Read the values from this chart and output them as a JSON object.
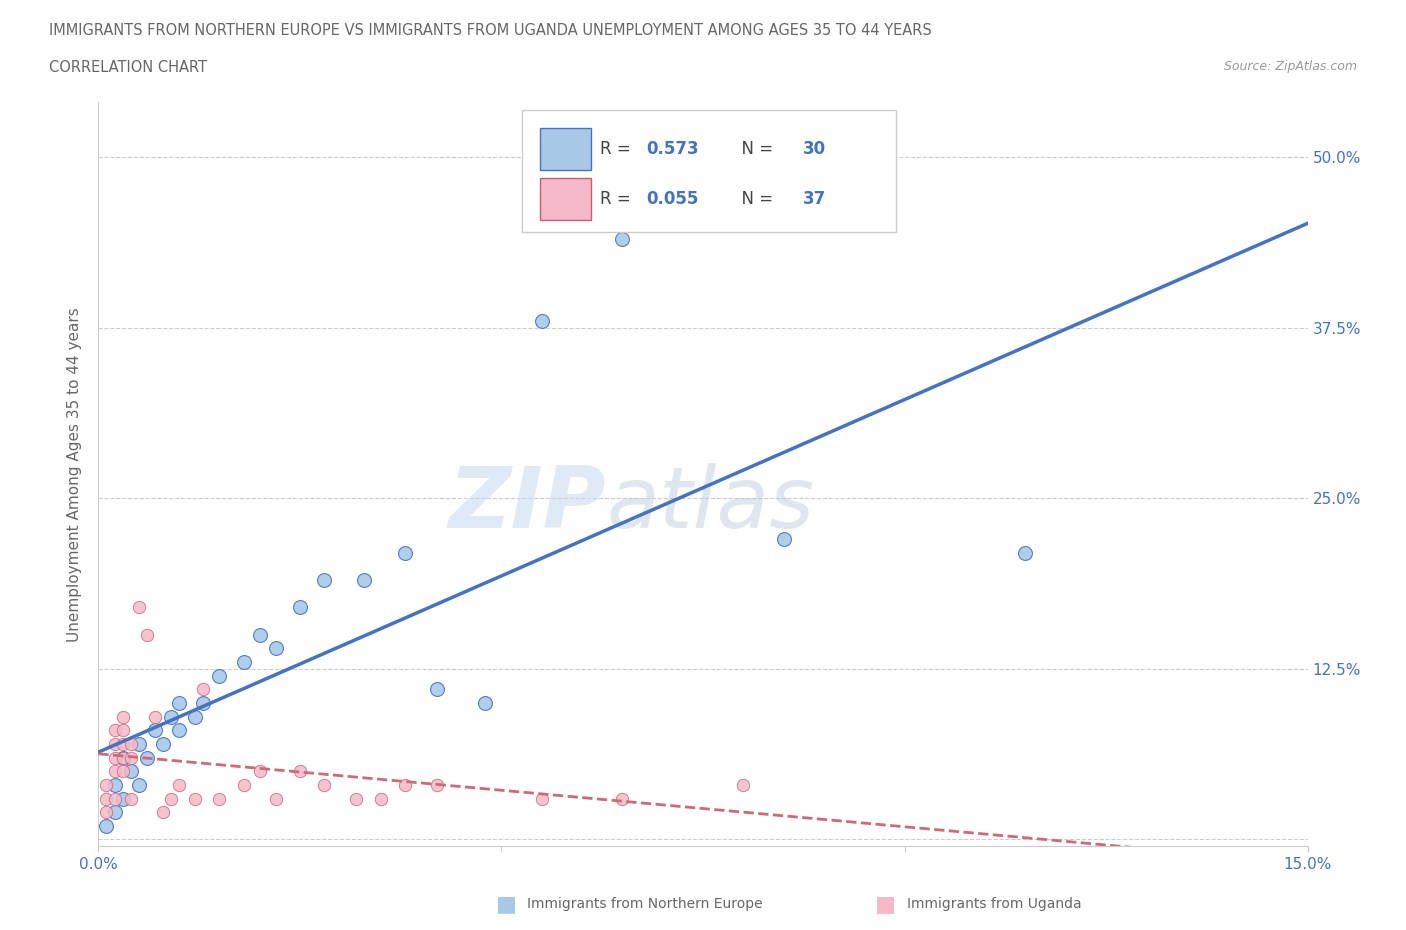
{
  "title_line1": "IMMIGRANTS FROM NORTHERN EUROPE VS IMMIGRANTS FROM UGANDA UNEMPLOYMENT AMONG AGES 35 TO 44 YEARS",
  "title_line2": "CORRELATION CHART",
  "source": "Source: ZipAtlas.com",
  "ylabel": "Unemployment Among Ages 35 to 44 years",
  "xlim": [
    0.0,
    0.15
  ],
  "ylim": [
    -0.005,
    0.54
  ],
  "yticks": [
    0.0,
    0.125,
    0.25,
    0.375,
    0.5
  ],
  "ytick_labels": [
    "",
    "12.5%",
    "25.0%",
    "37.5%",
    "50.0%"
  ],
  "blue_R": 0.573,
  "blue_N": 30,
  "pink_R": 0.055,
  "pink_N": 37,
  "blue_color": "#a8c8e8",
  "pink_color": "#f4b8c8",
  "blue_line_color": "#4472c4",
  "pink_line_color": "#d06878",
  "watermark_zip": "ZIP",
  "watermark_atlas": "atlas",
  "blue_scatter_x": [
    0.001,
    0.002,
    0.002,
    0.003,
    0.003,
    0.004,
    0.005,
    0.005,
    0.006,
    0.007,
    0.008,
    0.009,
    0.01,
    0.01,
    0.012,
    0.013,
    0.015,
    0.018,
    0.02,
    0.022,
    0.025,
    0.028,
    0.033,
    0.038,
    0.042,
    0.048,
    0.055,
    0.065,
    0.085,
    0.115
  ],
  "blue_scatter_y": [
    0.01,
    0.02,
    0.04,
    0.03,
    0.06,
    0.05,
    0.04,
    0.07,
    0.06,
    0.08,
    0.07,
    0.09,
    0.08,
    0.1,
    0.09,
    0.1,
    0.12,
    0.13,
    0.15,
    0.14,
    0.17,
    0.19,
    0.19,
    0.21,
    0.11,
    0.1,
    0.38,
    0.44,
    0.22,
    0.21
  ],
  "pink_scatter_x": [
    0.001,
    0.001,
    0.001,
    0.002,
    0.002,
    0.002,
    0.002,
    0.002,
    0.003,
    0.003,
    0.003,
    0.003,
    0.003,
    0.004,
    0.004,
    0.004,
    0.005,
    0.006,
    0.007,
    0.008,
    0.009,
    0.01,
    0.012,
    0.013,
    0.015,
    0.018,
    0.02,
    0.022,
    0.025,
    0.028,
    0.032,
    0.035,
    0.038,
    0.042,
    0.055,
    0.065,
    0.08
  ],
  "pink_scatter_y": [
    0.04,
    0.03,
    0.02,
    0.08,
    0.07,
    0.06,
    0.05,
    0.03,
    0.09,
    0.08,
    0.07,
    0.06,
    0.05,
    0.07,
    0.06,
    0.03,
    0.17,
    0.15,
    0.09,
    0.02,
    0.03,
    0.04,
    0.03,
    0.11,
    0.03,
    0.04,
    0.05,
    0.03,
    0.05,
    0.04,
    0.03,
    0.03,
    0.04,
    0.04,
    0.03,
    0.03,
    0.04
  ]
}
